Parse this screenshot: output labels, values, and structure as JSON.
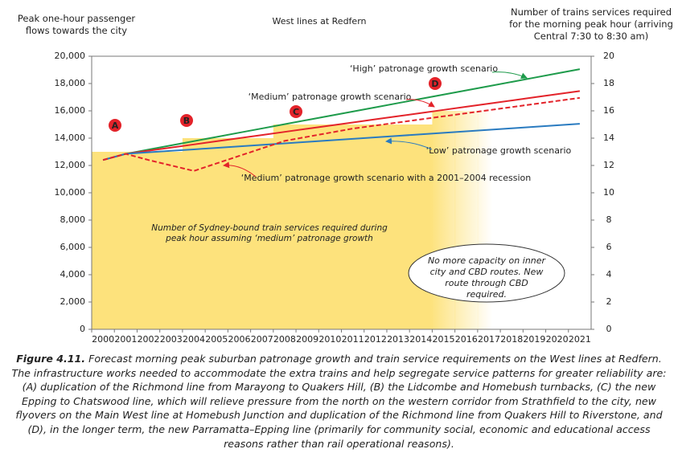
{
  "chart_data": {
    "type": "line",
    "title": "West lines at Redfern",
    "y_axis_label": "Peak one-hour passenger flows towards the city",
    "y2_axis_label": "Number of trains services required for the morning peak hour (arriving Central 7:30 to 8:30 am)",
    "x": [
      2000,
      2001,
      2002,
      2003,
      2004,
      2005,
      2006,
      2007,
      2008,
      2009,
      2010,
      2011,
      2012,
      2013,
      2014,
      2015,
      2016,
      2017,
      2018,
      2019,
      2020,
      2021
    ],
    "xlim": [
      1999.5,
      2021.5
    ],
    "xticks": [
      2000,
      2001,
      2002,
      2003,
      2004,
      2005,
      2006,
      2007,
      2008,
      2009,
      2010,
      2011,
      2012,
      2013,
      2014,
      2015,
      2016,
      2017,
      2018,
      2019,
      2020,
      2021
    ],
    "ylim": [
      0,
      20000
    ],
    "yticks": [
      0,
      {
        "value": 2000,
        "label": "2,000"
      },
      {
        "value": 4000,
        "label": "4,000"
      },
      {
        "value": 6000,
        "label": "6,000"
      },
      {
        "value": 8000,
        "label": "8,000"
      },
      {
        "value": 10000,
        "label": "10,000"
      },
      {
        "value": 12000,
        "label": "12,000"
      },
      {
        "value": 14000,
        "label": "14,000"
      },
      {
        "value": 16000,
        "label": "16,000"
      },
      {
        "value": 18000,
        "label": "18,000"
      },
      {
        "value": 20000,
        "label": "20,000"
      }
    ],
    "y2lim": [
      0,
      20
    ],
    "y2ticks": [
      0,
      2,
      4,
      6,
      8,
      10,
      12,
      14,
      16,
      18,
      20
    ],
    "series": [
      {
        "name": "Number of Sydney-bound train services required during peak hour assuming ‘medium’ patronage growth",
        "type": "bar",
        "axis": "y2",
        "color": "#fde27c",
        "values": [
          13,
          13,
          13,
          13,
          14,
          14,
          14,
          14,
          15,
          15,
          15,
          15,
          15,
          15,
          15,
          16,
          16,
          16,
          null,
          null,
          null,
          null
        ]
      },
      {
        "name": "‘High’ patronage growth scenario",
        "color": "#1e9b4b",
        "values": [
          12400,
          12850,
          13160,
          13470,
          13780,
          14090,
          14400,
          14710,
          15020,
          15330,
          15640,
          15950,
          16260,
          16570,
          16880,
          17190,
          17500,
          17810,
          18120,
          18430,
          18740,
          19050
        ]
      },
      {
        "name": "‘Medium’ patronage growth scenario",
        "color": "#e3232a",
        "values": [
          12400,
          12850,
          13080,
          13310,
          13540,
          13770,
          14000,
          14230,
          14460,
          14690,
          14920,
          15150,
          15380,
          15610,
          15840,
          16070,
          16300,
          16530,
          16760,
          16990,
          17220,
          17450
        ]
      },
      {
        "name": "‘Low’ patronage growth scenario",
        "color": "#2a7bc0",
        "values": [
          12400,
          12850,
          12960,
          13070,
          13180,
          13290,
          13400,
          13510,
          13620,
          13730,
          13840,
          13950,
          14060,
          14170,
          14280,
          14390,
          14500,
          14610,
          14720,
          14830,
          14940,
          15050
        ]
      },
      {
        "name": "‘Medium’ patronage growth scenario with a 2001–2004 recession",
        "color": "#e3232a",
        "dashed": true,
        "values": [
          12400,
          12850,
          12400,
          12000,
          11600,
          12150,
          12700,
          13250,
          13800,
          14100,
          14400,
          14700,
          14925,
          15150,
          15375,
          15600,
          15825,
          16050,
          16275,
          16500,
          16725,
          16950
        ]
      }
    ],
    "annotations": [
      "A",
      "B",
      "C",
      "D"
    ],
    "note": "No more capacity on inner city and CBD routes. New route through CBD required.",
    "caption_label": "Figure 4.11.",
    "caption": "Forecast morning peak suburban patronage growth and train service requirements on the West lines at Redfern. The infrastructure works needed to accommodate the extra trains and help segregate service patterns for greater reliability are: (A) duplication of the Richmond line from Marayong to Quakers Hill, (B) the Lidcombe and Homebush turnbacks, (C) the new Epping to Chatswood line, which will relieve pressure from the north on the western corridor from Strathfield to the city, new flyovers on the Main West line at Homebush Junction and duplication of the Richmond line from Quakers Hill to Riverstone, and (D), in the longer term, the new Parramatta–Epping line (primarily for community social, economic and educational access reasons rather than rail operational reasons)."
  }
}
